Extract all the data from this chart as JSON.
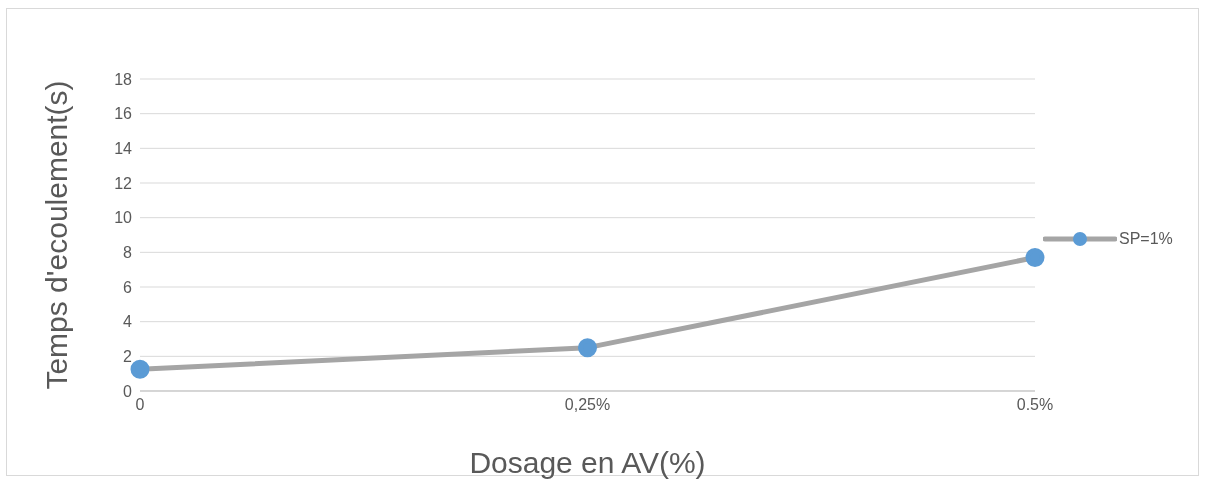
{
  "chart_data": {
    "type": "line",
    "xlabel": "Dosage en AV(%)",
    "ylabel": "Temps d'ecoulement(s)",
    "categories": [
      "0",
      "0,25%",
      "0.5%"
    ],
    "series": [
      {
        "name": "SP=1%",
        "color": "#a5a5a5",
        "values": [
          1.25,
          2.5,
          7.7
        ]
      }
    ],
    "ylim": [
      0,
      18
    ],
    "yticks": [
      0,
      2,
      4,
      6,
      8,
      10,
      12,
      14,
      16,
      18
    ],
    "grid": "y",
    "legend": "right",
    "marker": "circle"
  }
}
